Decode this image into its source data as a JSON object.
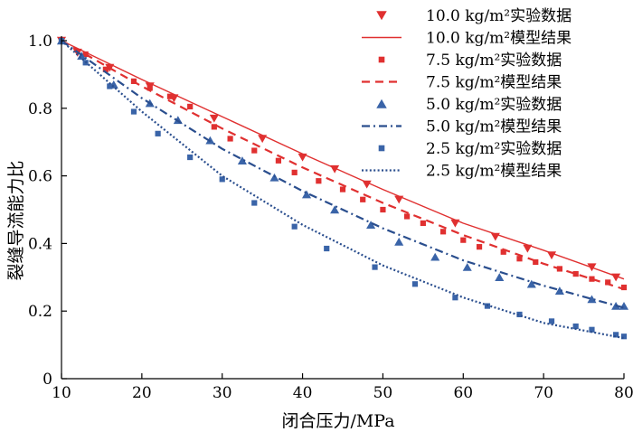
{
  "chart_data": {
    "type": "line",
    "title": "",
    "xlabel": "闭合压力/MPa",
    "ylabel": "裂缝导流能力比",
    "xlim": [
      10,
      80
    ],
    "ylim": [
      0,
      1.0
    ],
    "xticks": [
      10,
      20,
      30,
      40,
      50,
      60,
      70,
      80
    ],
    "xtick_labels": [
      "10",
      "20",
      "30",
      "40",
      "50",
      "60",
      "70",
      "80"
    ],
    "yticks": [
      0,
      0.2,
      0.4,
      0.6,
      0.8,
      1.0
    ],
    "ytick_labels": [
      "0",
      "0.2",
      "0.4",
      "0.6",
      "0.8",
      "1.0"
    ],
    "grid": false,
    "legend_position": "top-right",
    "legend": [
      {
        "label": "10.0 kg/m²实验数据",
        "color": "#e03030",
        "kind": "marker",
        "marker": "triangle-down"
      },
      {
        "label": "10.0 kg/m²模型结果",
        "color": "#e03030",
        "kind": "line",
        "dash": "solid"
      },
      {
        "label": "7.5 kg/m²实验数据",
        "color": "#e03030",
        "kind": "marker",
        "marker": "square"
      },
      {
        "label": "7.5 kg/m²模型结果",
        "color": "#e03030",
        "kind": "line",
        "dash": "dashed"
      },
      {
        "label": "5.0 kg/m²实验数据",
        "color": "#3a64a8",
        "kind": "marker",
        "marker": "triangle-up"
      },
      {
        "label": "5.0 kg/m²模型结果",
        "color": "#2a4e8e",
        "kind": "line",
        "dash": "dashdot"
      },
      {
        "label": "2.5 kg/m²实验数据",
        "color": "#3a64a8",
        "kind": "marker",
        "marker": "square"
      },
      {
        "label": "2.5 kg/m²模型结果",
        "color": "#2a4e8e",
        "kind": "line",
        "dash": "dotted"
      }
    ],
    "series": [
      {
        "legend_index": 0,
        "kind": "scatter",
        "x": [
          10,
          12,
          16,
          21,
          24,
          29,
          35,
          40,
          44,
          48,
          52,
          59,
          64,
          68,
          71,
          76,
          79
        ],
        "y": [
          1.0,
          0.965,
          0.92,
          0.865,
          0.83,
          0.77,
          0.71,
          0.655,
          0.62,
          0.575,
          0.53,
          0.46,
          0.42,
          0.385,
          0.365,
          0.33,
          0.3
        ]
      },
      {
        "legend_index": 1,
        "kind": "line",
        "x": [
          10,
          20,
          30,
          40,
          50,
          60,
          70,
          80
        ],
        "y": [
          1.0,
          0.885,
          0.775,
          0.665,
          0.56,
          0.46,
          0.38,
          0.295
        ]
      },
      {
        "legend_index": 2,
        "kind": "scatter",
        "x": [
          10,
          13,
          15.5,
          19,
          21,
          23.5,
          26,
          29,
          31,
          34,
          37,
          39,
          42,
          45,
          47.5,
          50,
          53,
          55,
          57.5,
          60,
          62,
          65,
          67,
          69,
          72,
          74,
          76,
          78,
          80
        ],
        "y": [
          1.0,
          0.96,
          0.915,
          0.88,
          0.86,
          0.835,
          0.805,
          0.745,
          0.71,
          0.675,
          0.645,
          0.61,
          0.585,
          0.56,
          0.53,
          0.5,
          0.48,
          0.46,
          0.435,
          0.41,
          0.39,
          0.375,
          0.355,
          0.345,
          0.325,
          0.31,
          0.295,
          0.285,
          0.27
        ]
      },
      {
        "legend_index": 3,
        "kind": "line",
        "x": [
          10,
          20,
          30,
          40,
          50,
          60,
          70,
          80
        ],
        "y": [
          1.0,
          0.865,
          0.74,
          0.625,
          0.52,
          0.425,
          0.34,
          0.265
        ]
      },
      {
        "legend_index": 4,
        "kind": "scatter",
        "x": [
          10,
          12.5,
          16.5,
          21,
          24.5,
          28.5,
          32.5,
          36.5,
          40.5,
          44,
          48.5,
          52,
          56.5,
          60.5,
          64.5,
          68.5,
          72,
          76,
          79,
          80
        ],
        "y": [
          1.0,
          0.955,
          0.87,
          0.815,
          0.765,
          0.705,
          0.645,
          0.595,
          0.545,
          0.5,
          0.455,
          0.405,
          0.36,
          0.33,
          0.3,
          0.28,
          0.26,
          0.235,
          0.215,
          0.215
        ]
      },
      {
        "legend_index": 5,
        "kind": "line",
        "x": [
          10,
          20,
          30,
          40,
          50,
          60,
          70,
          80
        ],
        "y": [
          1.0,
          0.83,
          0.68,
          0.555,
          0.445,
          0.35,
          0.275,
          0.21
        ]
      },
      {
        "legend_index": 6,
        "kind": "scatter",
        "x": [
          10,
          13,
          16,
          19,
          22,
          26,
          30,
          34,
          39,
          43,
          49,
          54,
          59,
          63,
          67,
          71,
          74,
          76,
          79,
          80
        ],
        "y": [
          1.0,
          0.935,
          0.865,
          0.79,
          0.725,
          0.655,
          0.59,
          0.52,
          0.45,
          0.385,
          0.33,
          0.28,
          0.24,
          0.215,
          0.19,
          0.17,
          0.155,
          0.145,
          0.13,
          0.125
        ]
      },
      {
        "legend_index": 7,
        "kind": "line",
        "x": [
          10,
          20,
          30,
          40,
          50,
          60,
          70,
          80
        ],
        "y": [
          1.0,
          0.79,
          0.6,
          0.455,
          0.335,
          0.24,
          0.165,
          0.12
        ]
      }
    ]
  }
}
